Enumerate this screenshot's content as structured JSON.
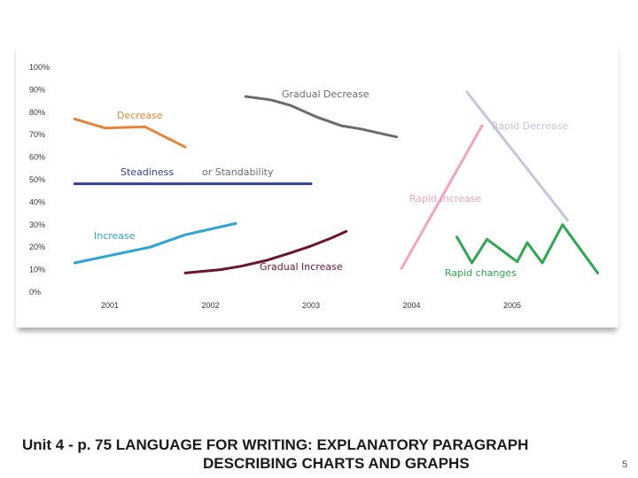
{
  "chart_data": {
    "type": "line",
    "title": "",
    "xlabel": "",
    "ylabel": "",
    "ylim": [
      0,
      100
    ],
    "x_categories": [
      "2001",
      "2002",
      "2003",
      "2004",
      "2005"
    ],
    "yticks": [
      "0%",
      "10%",
      "20%",
      "30%",
      "40%",
      "50%",
      "60%",
      "70%",
      "80%",
      "90%",
      "100%"
    ],
    "grid": false,
    "series": [
      {
        "name": "Decrease",
        "color": "#e8853a",
        "points": [
          [
            -0.35,
            77
          ],
          [
            -0.05,
            73
          ],
          [
            0.35,
            73.5
          ],
          [
            0.75,
            64.5
          ]
        ]
      },
      {
        "name": "Steadiness",
        "label_extra": "or Standability",
        "color": "#33409a",
        "points": [
          [
            -0.35,
            48.2
          ],
          [
            2.0,
            48.2
          ]
        ]
      },
      {
        "name": "Increase",
        "color": "#2ea3d6",
        "points": [
          [
            -0.35,
            13
          ],
          [
            0.4,
            20
          ],
          [
            0.75,
            25.5
          ],
          [
            1.25,
            30.5
          ]
        ]
      },
      {
        "name": "Gradual Decrease",
        "color": "#6b6b6b",
        "points": [
          [
            1.35,
            87
          ],
          [
            1.6,
            85.5
          ],
          [
            1.8,
            83
          ],
          [
            2.05,
            78
          ],
          [
            2.3,
            74
          ],
          [
            2.5,
            72.5
          ],
          [
            2.75,
            70
          ],
          [
            2.85,
            69
          ]
        ]
      },
      {
        "name": "Gradual Increase",
        "color": "#6a1432",
        "points": [
          [
            0.75,
            8.5
          ],
          [
            1.1,
            10
          ],
          [
            1.3,
            11.5
          ],
          [
            1.55,
            14
          ],
          [
            1.8,
            17.5
          ],
          [
            2.0,
            20.5
          ],
          [
            2.2,
            24
          ],
          [
            2.35,
            27
          ]
        ]
      },
      {
        "name": "Rapid Increase",
        "color": "#f0a3c3",
        "points": [
          [
            2.9,
            10.5
          ],
          [
            3.7,
            74
          ]
        ]
      },
      {
        "name": "Rapid Decrease",
        "color": "#c9c4dc",
        "points": [
          [
            3.55,
            89
          ],
          [
            4.55,
            32
          ]
        ]
      },
      {
        "name": "Rapid changes",
        "color": "#2fa652",
        "points": [
          [
            3.45,
            24.5
          ],
          [
            3.6,
            13
          ],
          [
            3.75,
            23.5
          ],
          [
            4.05,
            13.5
          ],
          [
            4.15,
            22
          ],
          [
            4.3,
            13
          ],
          [
            4.5,
            30
          ],
          [
            4.85,
            8.5
          ]
        ]
      }
    ]
  },
  "caption": {
    "line1": "Unit 4 - p. 75  LANGUAGE FOR WRITING: EXPLANATORY PARAGRAPH",
    "line2": "DESCRIBING CHARTS AND GRAPHS"
  },
  "page_number": "5"
}
